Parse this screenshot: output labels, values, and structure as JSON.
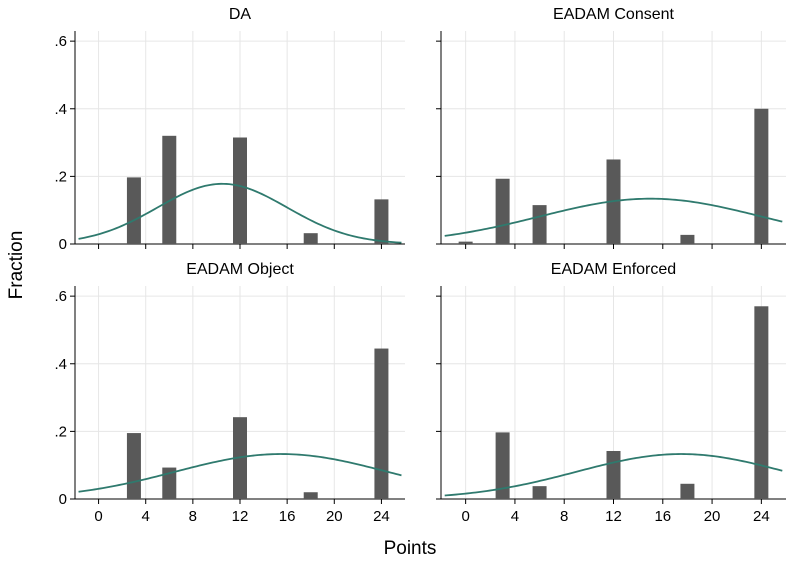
{
  "figure": {
    "xlabel": "Points",
    "ylabel": "Fraction",
    "bar_color": "#595959",
    "curve_color": "#2f7a6e",
    "grid_color": "#e6e6e6"
  },
  "chart_data": [
    {
      "type": "bar",
      "title": "DA",
      "x": [
        0,
        3,
        6,
        12,
        18,
        24
      ],
      "values": [
        0,
        0.197,
        0.32,
        0.315,
        0.032,
        0.132
      ],
      "normal_curve": {
        "mean": 10.5,
        "sd": 5.5,
        "peak": 0.178
      },
      "xlim": [
        -2,
        26
      ],
      "ylim": [
        0,
        0.63
      ],
      "xticks": [
        0,
        4,
        8,
        12,
        16,
        20,
        24
      ],
      "yticks": [
        0,
        0.2,
        0.4,
        0.6
      ],
      "ytick_labels": [
        "0",
        ".2",
        ".4",
        ".6"
      ],
      "show_xticks": false,
      "show_yticks": true,
      "grid": true
    },
    {
      "type": "bar",
      "title": "EADAM Consent",
      "x": [
        0,
        3,
        6,
        12,
        18,
        24
      ],
      "values": [
        0.007,
        0.193,
        0.115,
        0.25,
        0.027,
        0.4
      ],
      "normal_curve": {
        "mean": 15.0,
        "sd": 9.0,
        "peak": 0.134
      },
      "xlim": [
        -2,
        26
      ],
      "ylim": [
        0,
        0.63
      ],
      "xticks": [
        0,
        4,
        8,
        12,
        16,
        20,
        24
      ],
      "yticks": [
        0,
        0.2,
        0.4,
        0.6
      ],
      "ytick_labels": [
        "0",
        ".2",
        ".4",
        ".6"
      ],
      "show_xticks": false,
      "show_yticks": false,
      "grid": true
    },
    {
      "type": "bar",
      "title": "EADAM Object",
      "x": [
        0,
        3,
        6,
        12,
        18,
        24
      ],
      "values": [
        0,
        0.195,
        0.093,
        0.242,
        0.02,
        0.445
      ],
      "normal_curve": {
        "mean": 15.5,
        "sd": 9.0,
        "peak": 0.133
      },
      "xlim": [
        -2,
        26
      ],
      "ylim": [
        0,
        0.63
      ],
      "xticks": [
        0,
        4,
        8,
        12,
        16,
        20,
        24
      ],
      "xtick_labels": [
        "0",
        "4",
        "8",
        "12",
        "16",
        "20",
        "24"
      ],
      "yticks": [
        0,
        0.2,
        0.4,
        0.6
      ],
      "ytick_labels": [
        "0",
        ".2",
        ".4",
        ".6"
      ],
      "show_xticks": true,
      "show_yticks": true,
      "grid": true
    },
    {
      "type": "bar",
      "title": "EADAM Enforced",
      "x": [
        0,
        3,
        6,
        12,
        18,
        24
      ],
      "values": [
        0,
        0.197,
        0.038,
        0.142,
        0.045,
        0.57
      ],
      "normal_curve": {
        "mean": 17.5,
        "sd": 8.5,
        "peak": 0.133
      },
      "xlim": [
        -2,
        26
      ],
      "ylim": [
        0,
        0.63
      ],
      "xticks": [
        0,
        4,
        8,
        12,
        16,
        20,
        24
      ],
      "xtick_labels": [
        "0",
        "4",
        "8",
        "12",
        "16",
        "20",
        "24"
      ],
      "yticks": [
        0,
        0.2,
        0.4,
        0.6
      ],
      "ytick_labels": [
        "0",
        ".2",
        ".4",
        ".6"
      ],
      "show_xticks": true,
      "show_yticks": false,
      "grid": true
    }
  ]
}
